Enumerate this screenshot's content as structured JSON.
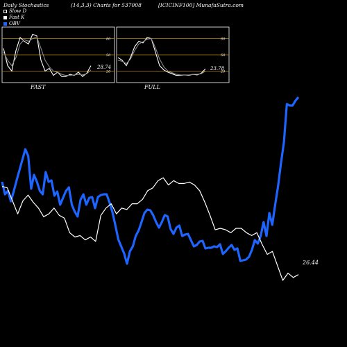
{
  "header": {
    "left": "Daily Stochastics",
    "middle": "(14,3,3) Charts for 537008",
    "right": "[ICICINF100] MunafaSutra.com"
  },
  "legend": [
    {
      "label": "Slow D",
      "color": "#000000"
    },
    {
      "label": "Fast K",
      "color": "#ffffff"
    },
    {
      "label": "OBV",
      "color": "#1e64ff"
    }
  ],
  "chart_data": [
    {
      "type": "line",
      "title": "FAST",
      "levels": [
        80,
        50,
        20
      ],
      "ylim": [
        0,
        100
      ],
      "last_value_label": "28.74",
      "series": [
        {
          "name": "Fast K",
          "color": "#ffffff",
          "values": [
            62,
            30,
            20,
            58,
            82,
            75,
            70,
            88,
            85,
            40,
            20,
            25,
            12,
            18,
            10,
            10,
            14,
            12,
            18,
            10,
            16,
            30
          ]
        },
        {
          "name": "Slow D",
          "color": "#888888",
          "values": [
            55,
            40,
            30,
            45,
            70,
            78,
            75,
            80,
            83,
            62,
            40,
            28,
            20,
            18,
            14,
            12,
            12,
            13,
            14,
            13,
            15,
            22
          ]
        }
      ]
    },
    {
      "type": "line",
      "title": "FULL",
      "levels": [
        80,
        50,
        20
      ],
      "ylim": [
        0,
        100
      ],
      "last_value_label": "23.78",
      "series": [
        {
          "name": "Fast K",
          "color": "#ffffff",
          "values": [
            45,
            40,
            30,
            45,
            65,
            75,
            72,
            82,
            80,
            55,
            30,
            22,
            18,
            15,
            12,
            12,
            13,
            12,
            14,
            13,
            16,
            24
          ]
        },
        {
          "name": "Slow D",
          "color": "#888888",
          "values": [
            40,
            38,
            34,
            42,
            58,
            70,
            74,
            79,
            80,
            63,
            42,
            28,
            20,
            17,
            14,
            13,
            13,
            13,
            14,
            14,
            15,
            20
          ]
        }
      ]
    },
    {
      "type": "line",
      "title": "",
      "series": [
        {
          "name": "OBV",
          "color": "#1e64ff",
          "values": [
            118,
            100,
            105,
            90,
            104,
            120,
            135,
            150,
            165,
            155,
            108,
            128,
            118,
            105,
            100,
            132,
            118,
            120,
            98,
            104,
            85,
            95,
            105,
            110,
            85,
            75,
            68,
            92,
            100,
            85,
            95,
            96,
            80,
            96,
            99,
            100,
            100,
            88,
            74,
            55,
            35,
            25,
            15,
            0,
            18,
            25,
            40,
            48,
            60,
            73,
            78,
            77,
            70,
            60,
            52,
            60,
            70,
            68,
            50,
            43,
            52,
            55,
            40,
            42,
            43,
            34,
            25,
            27,
            32,
            33,
            22,
            23,
            23,
            25,
            24,
            28,
            14,
            18,
            23,
            27,
            20,
            22,
            4,
            5,
            6,
            10,
            20,
            34,
            29,
            40,
            60,
            40,
            73,
            56,
            85,
            112,
            145,
            175,
            230,
            228,
            228,
            235,
            240
          ]
        },
        {
          "name": "Close",
          "color": "#ffffff",
          "last_value_label": "26.44",
          "values": [
            32.5,
            32.4,
            31.5,
            30.6,
            31.5,
            31.9,
            31.4,
            31.0,
            30.4,
            30.6,
            31.0,
            30.5,
            30.3,
            29.3,
            29.0,
            29.1,
            28.8,
            29.0,
            28.7,
            30.5,
            31.0,
            31.3,
            30.6,
            31.0,
            30.9,
            31.3,
            31.3,
            31.6,
            32.2,
            32.4,
            32.9,
            33.1,
            32.6,
            32.9,
            32.7,
            32.7,
            32.8,
            32.6,
            32.2,
            31.4,
            30.5,
            29.5,
            29.6,
            29.5,
            29.3,
            29.6,
            29.6,
            29.3,
            29.1,
            29.3,
            28.5,
            27.8,
            28.0,
            27.0,
            26.0,
            26.5,
            26.2,
            26.4
          ]
        }
      ]
    }
  ]
}
